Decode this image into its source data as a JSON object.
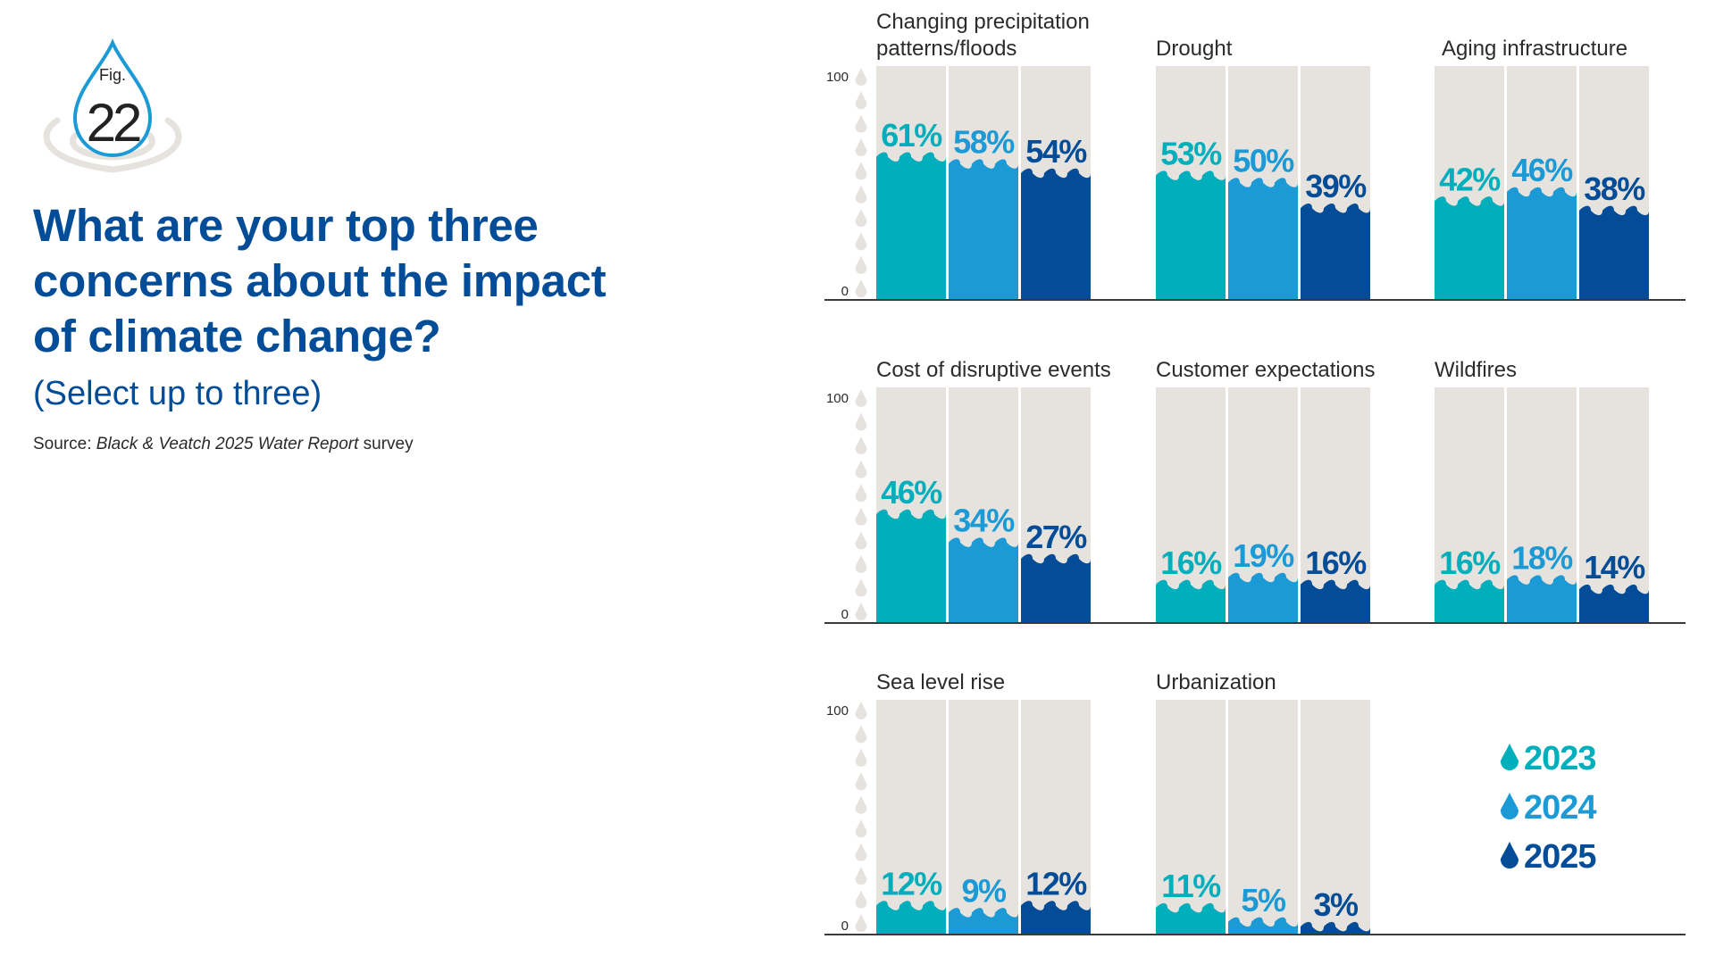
{
  "figure": {
    "label": "Fig.",
    "number": "22"
  },
  "header": {
    "title_lines": [
      "What are your top three",
      "concerns about the impact",
      "of climate change?"
    ],
    "subtitle": "(Select up to three)",
    "source_prefix": "Source: ",
    "source_italic": "Black & Veatch 2025 Water Report",
    "source_suffix": " survey"
  },
  "colors": {
    "2023": "#00aebc",
    "2024": "#1b9ad6",
    "2025": "#034c98",
    "track": "#e6e3de",
    "axis": "#3a3a3a",
    "title": "#034c98"
  },
  "chart_data": {
    "type": "bar",
    "title": "What are your top three concerns about the impact of climate change?",
    "ylim": [
      0,
      100
    ],
    "yticks": [
      "0",
      "100"
    ],
    "series_names": [
      "2023",
      "2024",
      "2025"
    ],
    "legend": {
      "placement": "bottom-right",
      "entries": [
        "2023",
        "2024",
        "2025"
      ]
    },
    "panels": [
      {
        "category": "Changing precipitation patterns/floods",
        "title_lines": [
          "Changing precipitation",
          "patterns/floods"
        ],
        "values": [
          61,
          58,
          54
        ]
      },
      {
        "category": "Drought",
        "title_lines": [
          "Drought"
        ],
        "values": [
          53,
          50,
          39
        ]
      },
      {
        "category": "Aging infrastructure",
        "title_lines": [
          "Aging infrastructure"
        ],
        "values": [
          42,
          46,
          38
        ]
      },
      {
        "category": "Cost of disruptive events",
        "title_lines": [
          "Cost of disruptive events"
        ],
        "values": [
          46,
          34,
          27
        ]
      },
      {
        "category": "Customer expectations",
        "title_lines": [
          "Customer expectations"
        ],
        "values": [
          16,
          19,
          16
        ]
      },
      {
        "category": "Wildfires",
        "title_lines": [
          "Wildfires"
        ],
        "values": [
          16,
          18,
          14
        ]
      },
      {
        "category": "Sea level rise",
        "title_lines": [
          "Sea level rise"
        ],
        "values": [
          12,
          9,
          12
        ]
      },
      {
        "category": "Urbanization",
        "title_lines": [
          "Urbanization"
        ],
        "values": [
          11,
          5,
          3
        ]
      }
    ]
  }
}
